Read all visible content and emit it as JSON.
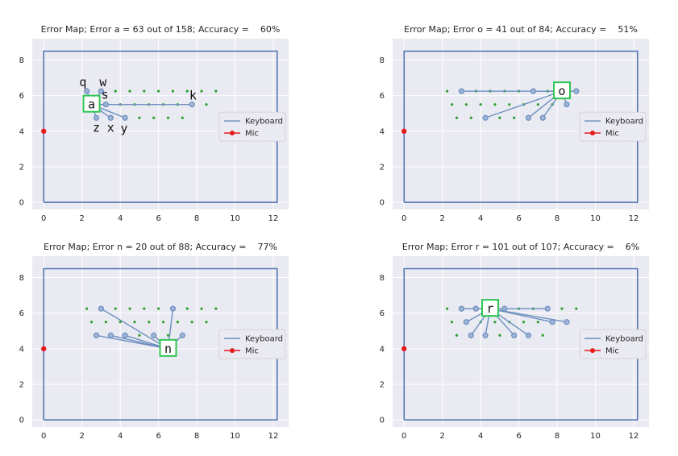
{
  "chart_data": [
    {
      "type": "scatter",
      "title": "Error Map; Error a = 63 out of 158; Accuracy =    60%",
      "xlim": [
        -0.6,
        12.8
      ],
      "ylim": [
        -0.4,
        9.2
      ],
      "xticks": [
        0,
        2,
        4,
        6,
        8,
        10,
        12
      ],
      "yticks": [
        0,
        2,
        4,
        6,
        8
      ],
      "boundary": [
        [
          0,
          0
        ],
        [
          12.2,
          0
        ],
        [
          12.2,
          8.5
        ],
        [
          0,
          8.5
        ],
        [
          0,
          0
        ]
      ],
      "mic": [
        0,
        4
      ],
      "keys": [
        [
          2.25,
          6.25
        ],
        [
          3.0,
          6.25
        ],
        [
          3.75,
          6.25
        ],
        [
          4.5,
          6.25
        ],
        [
          5.25,
          6.25
        ],
        [
          6.0,
          6.25
        ],
        [
          6.75,
          6.25
        ],
        [
          7.5,
          6.25
        ],
        [
          8.25,
          6.25
        ],
        [
          9.0,
          6.25
        ],
        [
          2.5,
          5.5
        ],
        [
          3.25,
          5.5
        ],
        [
          4.0,
          5.5
        ],
        [
          4.75,
          5.5
        ],
        [
          5.5,
          5.5
        ],
        [
          6.25,
          5.5
        ],
        [
          7.0,
          5.5
        ],
        [
          7.75,
          5.5
        ],
        [
          8.5,
          5.5
        ],
        [
          2.75,
          4.75
        ],
        [
          3.5,
          4.75
        ],
        [
          4.25,
          4.75
        ],
        [
          5.0,
          4.75
        ],
        [
          5.75,
          4.75
        ],
        [
          6.5,
          4.75
        ],
        [
          7.25,
          4.75
        ]
      ],
      "target": {
        "label": "a",
        "x": 2.5,
        "y": 5.5
      },
      "errors": [
        [
          2.25,
          6.25
        ],
        [
          3.0,
          6.25
        ],
        [
          3.25,
          5.5
        ],
        [
          7.75,
          5.5
        ],
        [
          2.75,
          4.75
        ],
        [
          3.5,
          4.75
        ],
        [
          4.25,
          4.75
        ]
      ],
      "annotations": [
        {
          "text": "q",
          "x": 2.05,
          "y": 6.75
        },
        {
          "text": "w",
          "x": 3.1,
          "y": 6.75
        },
        {
          "text": "s",
          "x": 3.2,
          "y": 6.05
        },
        {
          "text": "k",
          "x": 7.8,
          "y": 6.0
        },
        {
          "text": "z",
          "x": 2.75,
          "y": 4.2
        },
        {
          "text": "x",
          "x": 3.5,
          "y": 4.2
        },
        {
          "text": "y",
          "x": 4.2,
          "y": 4.15
        }
      ],
      "legend": [
        "Keyboard",
        "Mic"
      ],
      "legend_loc": "center right"
    },
    {
      "type": "scatter",
      "title": "Error Map; Error o = 41 out of 84; Accuracy =    51%",
      "xlim": [
        -0.6,
        12.8
      ],
      "ylim": [
        -0.4,
        9.2
      ],
      "xticks": [
        0,
        2,
        4,
        6,
        8,
        10,
        12
      ],
      "yticks": [
        0,
        2,
        4,
        6,
        8
      ],
      "boundary": [
        [
          0,
          0
        ],
        [
          12.2,
          0
        ],
        [
          12.2,
          8.5
        ],
        [
          0,
          8.5
        ],
        [
          0,
          0
        ]
      ],
      "mic": [
        0,
        4
      ],
      "keys": [
        [
          2.25,
          6.25
        ],
        [
          3.0,
          6.25
        ],
        [
          3.75,
          6.25
        ],
        [
          4.5,
          6.25
        ],
        [
          5.25,
          6.25
        ],
        [
          6.0,
          6.25
        ],
        [
          6.75,
          6.25
        ],
        [
          7.5,
          6.25
        ],
        [
          8.25,
          6.25
        ],
        [
          9.0,
          6.25
        ],
        [
          2.5,
          5.5
        ],
        [
          3.25,
          5.5
        ],
        [
          4.0,
          5.5
        ],
        [
          4.75,
          5.5
        ],
        [
          5.5,
          5.5
        ],
        [
          6.25,
          5.5
        ],
        [
          7.0,
          5.5
        ],
        [
          7.75,
          5.5
        ],
        [
          8.5,
          5.5
        ],
        [
          2.75,
          4.75
        ],
        [
          3.5,
          4.75
        ],
        [
          4.25,
          4.75
        ],
        [
          5.0,
          4.75
        ],
        [
          5.75,
          4.75
        ],
        [
          6.5,
          4.75
        ],
        [
          7.25,
          4.75
        ]
      ],
      "target": {
        "label": "o",
        "x": 8.25,
        "y": 6.25
      },
      "errors": [
        [
          3.0,
          6.25
        ],
        [
          6.75,
          6.25
        ],
        [
          9.0,
          6.25
        ],
        [
          8.5,
          5.5
        ],
        [
          4.25,
          4.75
        ],
        [
          6.5,
          4.75
        ],
        [
          7.25,
          4.75
        ]
      ],
      "annotations": [],
      "legend": [
        "Keyboard",
        "Mic"
      ],
      "legend_loc": "center right"
    },
    {
      "type": "scatter",
      "title": "Error Map; Error n = 20 out of 88; Accuracy =    77%",
      "xlim": [
        -0.6,
        12.8
      ],
      "ylim": [
        -0.4,
        9.2
      ],
      "xticks": [
        0,
        2,
        4,
        6,
        8,
        10,
        12
      ],
      "yticks": [
        0,
        2,
        4,
        6,
        8
      ],
      "boundary": [
        [
          0,
          0
        ],
        [
          12.2,
          0
        ],
        [
          12.2,
          8.5
        ],
        [
          0,
          8.5
        ],
        [
          0,
          0
        ]
      ],
      "mic": [
        0,
        4
      ],
      "keys": [
        [
          2.25,
          6.25
        ],
        [
          3.0,
          6.25
        ],
        [
          3.75,
          6.25
        ],
        [
          4.5,
          6.25
        ],
        [
          5.25,
          6.25
        ],
        [
          6.0,
          6.25
        ],
        [
          6.75,
          6.25
        ],
        [
          7.5,
          6.25
        ],
        [
          8.25,
          6.25
        ],
        [
          9.0,
          6.25
        ],
        [
          2.5,
          5.5
        ],
        [
          3.25,
          5.5
        ],
        [
          4.0,
          5.5
        ],
        [
          4.75,
          5.5
        ],
        [
          5.5,
          5.5
        ],
        [
          6.25,
          5.5
        ],
        [
          7.0,
          5.5
        ],
        [
          7.75,
          5.5
        ],
        [
          8.5,
          5.5
        ],
        [
          2.75,
          4.75
        ],
        [
          3.5,
          4.75
        ],
        [
          4.25,
          4.75
        ],
        [
          5.0,
          4.75
        ],
        [
          5.75,
          4.75
        ],
        [
          6.5,
          4.75
        ],
        [
          7.25,
          4.75
        ]
      ],
      "target": {
        "label": "n",
        "x": 6.5,
        "y": 4.0
      },
      "errors": [
        [
          3.0,
          6.25
        ],
        [
          6.75,
          6.25
        ],
        [
          2.75,
          4.75
        ],
        [
          3.5,
          4.75
        ],
        [
          4.25,
          4.75
        ],
        [
          5.75,
          4.75
        ],
        [
          7.25,
          4.75
        ]
      ],
      "annotations": [],
      "legend": [
        "Keyboard",
        "Mic"
      ],
      "legend_loc": "center right"
    },
    {
      "type": "scatter",
      "title": "Error Map; Error r = 101 out of 107; Accuracy =    6%",
      "xlim": [
        -0.6,
        12.8
      ],
      "ylim": [
        -0.4,
        9.2
      ],
      "xticks": [
        0,
        2,
        4,
        6,
        8,
        10,
        12
      ],
      "yticks": [
        0,
        2,
        4,
        6,
        8
      ],
      "boundary": [
        [
          0,
          0
        ],
        [
          12.2,
          0
        ],
        [
          12.2,
          8.5
        ],
        [
          0,
          8.5
        ],
        [
          0,
          0
        ]
      ],
      "mic": [
        0,
        4
      ],
      "keys": [
        [
          2.25,
          6.25
        ],
        [
          3.0,
          6.25
        ],
        [
          3.75,
          6.25
        ],
        [
          4.5,
          6.25
        ],
        [
          5.25,
          6.25
        ],
        [
          6.0,
          6.25
        ],
        [
          6.75,
          6.25
        ],
        [
          7.5,
          6.25
        ],
        [
          8.25,
          6.25
        ],
        [
          9.0,
          6.25
        ],
        [
          2.5,
          5.5
        ],
        [
          3.25,
          5.5
        ],
        [
          4.0,
          5.5
        ],
        [
          4.75,
          5.5
        ],
        [
          5.5,
          5.5
        ],
        [
          6.25,
          5.5
        ],
        [
          7.0,
          5.5
        ],
        [
          7.75,
          5.5
        ],
        [
          8.5,
          5.5
        ],
        [
          2.75,
          4.75
        ],
        [
          3.5,
          4.75
        ],
        [
          4.25,
          4.75
        ],
        [
          5.0,
          4.75
        ],
        [
          5.75,
          4.75
        ],
        [
          6.5,
          4.75
        ],
        [
          7.25,
          4.75
        ]
      ],
      "target": {
        "label": "r",
        "x": 4.5,
        "y": 6.25
      },
      "errors": [
        [
          3.0,
          6.25
        ],
        [
          3.75,
          6.25
        ],
        [
          5.25,
          6.25
        ],
        [
          7.5,
          6.25
        ],
        [
          3.25,
          5.5
        ],
        [
          7.75,
          5.5
        ],
        [
          8.5,
          5.5
        ],
        [
          3.5,
          4.75
        ],
        [
          4.25,
          4.75
        ],
        [
          5.75,
          4.75
        ],
        [
          6.5,
          4.75
        ]
      ],
      "annotations": [],
      "legend": [
        "Keyboard",
        "Mic"
      ],
      "legend_loc": "center right"
    }
  ]
}
